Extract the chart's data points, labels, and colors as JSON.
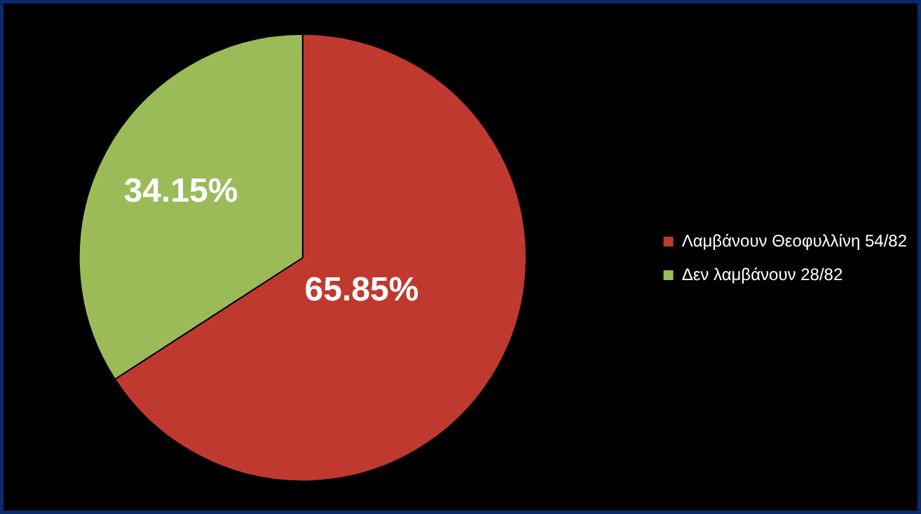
{
  "chart_data": {
    "type": "pie",
    "categories": [
      "Λαμβάνουν Θεοφυλλίνη 54/82",
      "Δεν λαμβάνουν 28/82"
    ],
    "values": [
      65.85,
      34.15
    ],
    "colors": [
      "#c0392f",
      "#9bbb59"
    ],
    "value_labels": [
      "65.85%",
      "34.15%"
    ],
    "legend": "right"
  }
}
